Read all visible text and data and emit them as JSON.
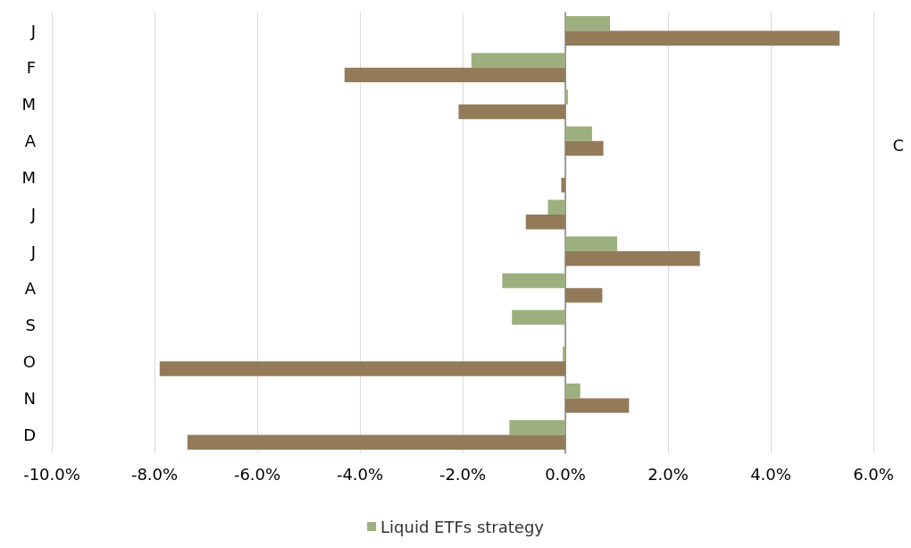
{
  "chart_data": {
    "type": "bar",
    "orientation": "horizontal",
    "categories": [
      "J",
      "F",
      "M",
      "A",
      "M",
      "J",
      "J",
      "A",
      "S",
      "O",
      "N",
      "D"
    ],
    "series": [
      {
        "name": "Liquid ETFs strategy",
        "color": "#9caf7e",
        "values": [
          0.87,
          -1.83,
          0.05,
          0.52,
          0.02,
          -0.34,
          1.01,
          -1.23,
          -1.04,
          -0.05,
          0.29,
          -1.09
        ]
      },
      {
        "color": "#937b5a",
        "values": [
          5.34,
          -4.3,
          -2.08,
          0.74,
          -0.08,
          -0.77,
          2.62,
          0.72,
          0.0,
          -7.9,
          1.24,
          -7.36
        ]
      }
    ],
    "xlim": [
      -10,
      6
    ],
    "xticks": [
      {
        "value": -10,
        "label": "-10.0%"
      },
      {
        "value": -8,
        "label": "-8.0%"
      },
      {
        "value": -6,
        "label": "-6.0%"
      },
      {
        "value": -4,
        "label": "-4.0%"
      },
      {
        "value": -2,
        "label": "-2.0%"
      },
      {
        "value": 0,
        "label": "0.0%"
      },
      {
        "value": 2,
        "label": "2.0%"
      },
      {
        "value": 4,
        "label": "4.0%"
      },
      {
        "value": 6,
        "label": "6.0%"
      }
    ],
    "grid": "x",
    "legend": "bottom",
    "annotations": [
      "C"
    ]
  }
}
